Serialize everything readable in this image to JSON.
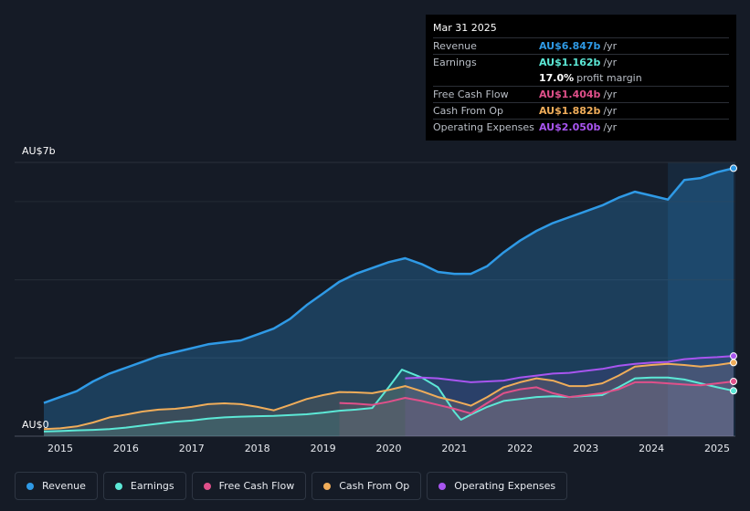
{
  "tooltip": {
    "date": "Mar 31 2025",
    "rows": [
      {
        "label": "Revenue",
        "value": "AU$6.847b",
        "unit": "/yr",
        "color": "#2f9ae6"
      },
      {
        "label": "Earnings",
        "value": "AU$1.162b",
        "unit": "/yr",
        "color": "#5ce8d6"
      },
      {
        "label": "",
        "value": "17.0%",
        "unit": "profit margin",
        "color": "#ffffff"
      },
      {
        "label": "Free Cash Flow",
        "value": "AU$1.404b",
        "unit": "/yr",
        "color": "#e0508a"
      },
      {
        "label": "Cash From Op",
        "value": "AU$1.882b",
        "unit": "/yr",
        "color": "#f0ad5a"
      },
      {
        "label": "Operating Expenses",
        "value": "AU$2.050b",
        "unit": "/yr",
        "color": "#a855f0"
      }
    ]
  },
  "chart_data": {
    "type": "line",
    "title": "",
    "xlabel": "",
    "ylabel": "",
    "y_max_label": "AU$7b",
    "y_min_label": "AU$0",
    "ylim": [
      0,
      7
    ],
    "xlim": [
      2014.75,
      2025.25
    ],
    "x_ticks": [
      "2015",
      "2016",
      "2017",
      "2018",
      "2019",
      "2020",
      "2021",
      "2022",
      "2023",
      "2024",
      "2025"
    ],
    "highlight_from": 2024.25,
    "series": [
      {
        "name": "Revenue",
        "color": "#2f9ae6",
        "fill": true,
        "points": [
          [
            2014.75,
            0.85
          ],
          [
            2015.0,
            1.0
          ],
          [
            2015.25,
            1.15
          ],
          [
            2015.5,
            1.4
          ],
          [
            2015.75,
            1.6
          ],
          [
            2016.0,
            1.75
          ],
          [
            2016.25,
            1.9
          ],
          [
            2016.5,
            2.05
          ],
          [
            2016.75,
            2.15
          ],
          [
            2017.0,
            2.25
          ],
          [
            2017.25,
            2.35
          ],
          [
            2017.5,
            2.4
          ],
          [
            2017.75,
            2.45
          ],
          [
            2018.0,
            2.6
          ],
          [
            2018.25,
            2.75
          ],
          [
            2018.5,
            3.0
          ],
          [
            2018.75,
            3.35
          ],
          [
            2019.0,
            3.65
          ],
          [
            2019.25,
            3.95
          ],
          [
            2019.5,
            4.15
          ],
          [
            2019.75,
            4.3
          ],
          [
            2020.0,
            4.45
          ],
          [
            2020.25,
            4.55
          ],
          [
            2020.5,
            4.4
          ],
          [
            2020.75,
            4.2
          ],
          [
            2021.0,
            4.15
          ],
          [
            2021.25,
            4.15
          ],
          [
            2021.5,
            4.35
          ],
          [
            2021.75,
            4.7
          ],
          [
            2022.0,
            5.0
          ],
          [
            2022.25,
            5.25
          ],
          [
            2022.5,
            5.45
          ],
          [
            2022.75,
            5.6
          ],
          [
            2023.0,
            5.75
          ],
          [
            2023.25,
            5.9
          ],
          [
            2023.5,
            6.1
          ],
          [
            2023.75,
            6.25
          ],
          [
            2024.0,
            6.15
          ],
          [
            2024.25,
            6.05
          ],
          [
            2024.5,
            6.55
          ],
          [
            2024.75,
            6.6
          ],
          [
            2025.0,
            6.75
          ],
          [
            2025.25,
            6.85
          ]
        ]
      },
      {
        "name": "Earnings",
        "color": "#5ce8d6",
        "fill": true,
        "points": [
          [
            2014.75,
            0.12
          ],
          [
            2015.0,
            0.13
          ],
          [
            2015.25,
            0.15
          ],
          [
            2015.5,
            0.16
          ],
          [
            2015.75,
            0.18
          ],
          [
            2016.0,
            0.22
          ],
          [
            2016.25,
            0.27
          ],
          [
            2016.5,
            0.32
          ],
          [
            2016.75,
            0.37
          ],
          [
            2017.0,
            0.4
          ],
          [
            2017.25,
            0.45
          ],
          [
            2017.5,
            0.48
          ],
          [
            2017.75,
            0.5
          ],
          [
            2018.0,
            0.51
          ],
          [
            2018.25,
            0.52
          ],
          [
            2018.5,
            0.54
          ],
          [
            2018.75,
            0.56
          ],
          [
            2019.0,
            0.6
          ],
          [
            2019.25,
            0.65
          ],
          [
            2019.5,
            0.68
          ],
          [
            2019.75,
            0.72
          ],
          [
            2020.0,
            1.25
          ],
          [
            2020.2,
            1.7
          ],
          [
            2020.5,
            1.5
          ],
          [
            2020.75,
            1.25
          ],
          [
            2021.0,
            0.62
          ],
          [
            2021.1,
            0.42
          ],
          [
            2021.25,
            0.55
          ],
          [
            2021.5,
            0.75
          ],
          [
            2021.75,
            0.9
          ],
          [
            2022.0,
            0.95
          ],
          [
            2022.25,
            1.0
          ],
          [
            2022.5,
            1.02
          ],
          [
            2022.75,
            1.0
          ],
          [
            2023.0,
            1.03
          ],
          [
            2023.25,
            1.05
          ],
          [
            2023.5,
            1.25
          ],
          [
            2023.75,
            1.48
          ],
          [
            2024.0,
            1.5
          ],
          [
            2024.25,
            1.5
          ],
          [
            2024.5,
            1.45
          ],
          [
            2024.75,
            1.35
          ],
          [
            2025.0,
            1.25
          ],
          [
            2025.25,
            1.16
          ]
        ]
      },
      {
        "name": "Free Cash Flow",
        "color": "#e0508a",
        "fill": true,
        "points": [
          [
            2019.25,
            0.85
          ],
          [
            2019.5,
            0.83
          ],
          [
            2019.75,
            0.8
          ],
          [
            2020.0,
            0.88
          ],
          [
            2020.25,
            0.98
          ],
          [
            2020.5,
            0.9
          ],
          [
            2020.75,
            0.8
          ],
          [
            2021.0,
            0.7
          ],
          [
            2021.25,
            0.58
          ],
          [
            2021.5,
            0.85
          ],
          [
            2021.75,
            1.1
          ],
          [
            2022.0,
            1.2
          ],
          [
            2022.25,
            1.25
          ],
          [
            2022.5,
            1.1
          ],
          [
            2022.75,
            1.0
          ],
          [
            2023.0,
            1.05
          ],
          [
            2023.25,
            1.1
          ],
          [
            2023.5,
            1.2
          ],
          [
            2023.75,
            1.38
          ],
          [
            2024.0,
            1.38
          ],
          [
            2024.25,
            1.35
          ],
          [
            2024.5,
            1.32
          ],
          [
            2024.75,
            1.3
          ],
          [
            2025.0,
            1.35
          ],
          [
            2025.25,
            1.4
          ]
        ]
      },
      {
        "name": "Cash From Op",
        "color": "#f0ad5a",
        "fill": true,
        "points": [
          [
            2014.75,
            0.18
          ],
          [
            2015.0,
            0.2
          ],
          [
            2015.25,
            0.25
          ],
          [
            2015.5,
            0.35
          ],
          [
            2015.75,
            0.48
          ],
          [
            2016.0,
            0.55
          ],
          [
            2016.25,
            0.63
          ],
          [
            2016.5,
            0.68
          ],
          [
            2016.75,
            0.7
          ],
          [
            2017.0,
            0.75
          ],
          [
            2017.25,
            0.82
          ],
          [
            2017.5,
            0.84
          ],
          [
            2017.75,
            0.82
          ],
          [
            2018.0,
            0.75
          ],
          [
            2018.25,
            0.66
          ],
          [
            2018.5,
            0.8
          ],
          [
            2018.75,
            0.95
          ],
          [
            2019.0,
            1.05
          ],
          [
            2019.25,
            1.13
          ],
          [
            2019.5,
            1.12
          ],
          [
            2019.75,
            1.1
          ],
          [
            2020.0,
            1.18
          ],
          [
            2020.25,
            1.28
          ],
          [
            2020.5,
            1.15
          ],
          [
            2020.75,
            1.0
          ],
          [
            2021.0,
            0.9
          ],
          [
            2021.25,
            0.78
          ],
          [
            2021.5,
            1.0
          ],
          [
            2021.75,
            1.25
          ],
          [
            2022.0,
            1.38
          ],
          [
            2022.25,
            1.48
          ],
          [
            2022.5,
            1.42
          ],
          [
            2022.75,
            1.28
          ],
          [
            2023.0,
            1.28
          ],
          [
            2023.25,
            1.35
          ],
          [
            2023.5,
            1.55
          ],
          [
            2023.75,
            1.78
          ],
          [
            2024.0,
            1.82
          ],
          [
            2024.25,
            1.85
          ],
          [
            2024.5,
            1.82
          ],
          [
            2024.75,
            1.78
          ],
          [
            2025.0,
            1.82
          ],
          [
            2025.25,
            1.88
          ]
        ]
      },
      {
        "name": "Operating Expenses",
        "color": "#a855f0",
        "fill": true,
        "points": [
          [
            2020.25,
            1.48
          ],
          [
            2020.5,
            1.5
          ],
          [
            2020.75,
            1.48
          ],
          [
            2021.0,
            1.43
          ],
          [
            2021.25,
            1.38
          ],
          [
            2021.5,
            1.4
          ],
          [
            2021.75,
            1.42
          ],
          [
            2022.0,
            1.5
          ],
          [
            2022.25,
            1.55
          ],
          [
            2022.5,
            1.6
          ],
          [
            2022.75,
            1.62
          ],
          [
            2023.0,
            1.67
          ],
          [
            2023.25,
            1.72
          ],
          [
            2023.5,
            1.8
          ],
          [
            2023.75,
            1.85
          ],
          [
            2024.0,
            1.88
          ],
          [
            2024.25,
            1.9
          ],
          [
            2024.5,
            1.97
          ],
          [
            2024.75,
            2.0
          ],
          [
            2025.0,
            2.02
          ],
          [
            2025.25,
            2.05
          ]
        ]
      }
    ]
  },
  "legend": [
    {
      "label": "Revenue",
      "color": "#2f9ae6"
    },
    {
      "label": "Earnings",
      "color": "#5ce8d6"
    },
    {
      "label": "Free Cash Flow",
      "color": "#e0508a"
    },
    {
      "label": "Cash From Op",
      "color": "#f0ad5a"
    },
    {
      "label": "Operating Expenses",
      "color": "#a855f0"
    }
  ]
}
